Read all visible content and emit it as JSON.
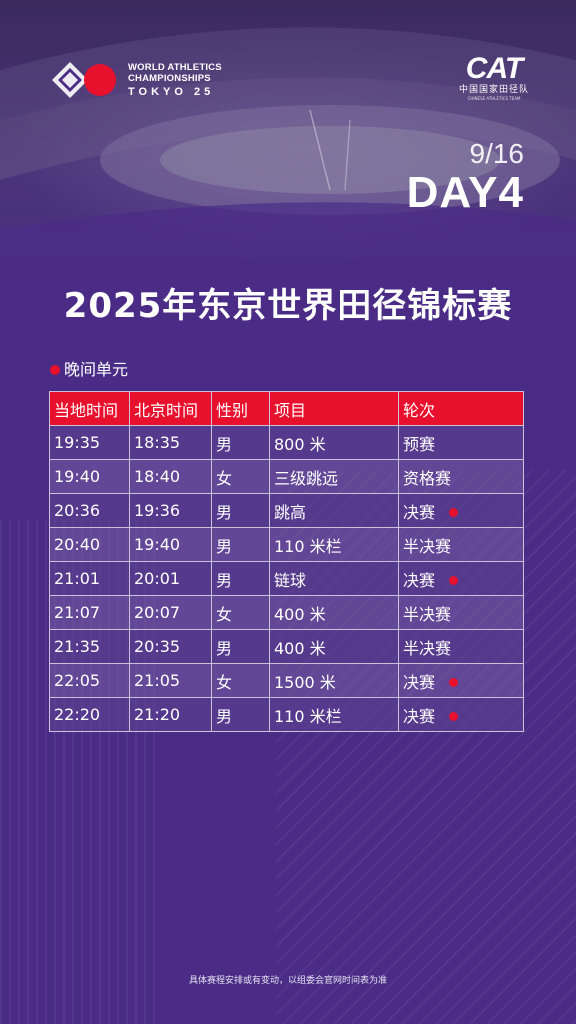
{
  "header": {
    "wac_logo_lines": [
      "WORLD ATHLETICS",
      "CHAMPIONSHIPS"
    ],
    "wac_city": "TOKYO 25",
    "cat_logo": "CAT",
    "cat_name": "中国国家田径队",
    "cat_name_en": "CHINESE ATHLETICS TEAM",
    "date": "9/16",
    "day": "DAY4"
  },
  "title": "2025年东京世界田径锦标赛",
  "session_label": "晚间单元",
  "table": {
    "columns": [
      "当地时间",
      "北京时间",
      "性别",
      "项目",
      "轮次"
    ],
    "rows": [
      {
        "local": "19:35",
        "beijing": "18:35",
        "gender": "男",
        "event": "800 米",
        "round": "预赛",
        "final": false
      },
      {
        "local": "19:40",
        "beijing": "18:40",
        "gender": "女",
        "event": "三级跳远",
        "round": "资格赛",
        "final": false
      },
      {
        "local": "20:36",
        "beijing": "19:36",
        "gender": "男",
        "event": "跳高",
        "round": "决赛",
        "final": true
      },
      {
        "local": "20:40",
        "beijing": "19:40",
        "gender": "男",
        "event": "110 米栏",
        "round": "半决赛",
        "final": false
      },
      {
        "local": "21:01",
        "beijing": "20:01",
        "gender": "男",
        "event": "链球",
        "round": "决赛",
        "final": true
      },
      {
        "local": "21:07",
        "beijing": "20:07",
        "gender": "女",
        "event": "400 米",
        "round": "半决赛",
        "final": false
      },
      {
        "local": "21:35",
        "beijing": "20:35",
        "gender": "男",
        "event": "400 米",
        "round": "半决赛",
        "final": false
      },
      {
        "local": "22:05",
        "beijing": "21:05",
        "gender": "女",
        "event": "1500 米",
        "round": "决赛",
        "final": true
      },
      {
        "local": "22:20",
        "beijing": "21:20",
        "gender": "男",
        "event": "110 米栏",
        "round": "决赛",
        "final": true
      }
    ]
  },
  "footer": "具体赛程安排或有变动，以组委会官网时间表为准",
  "colors": {
    "background": "#4a2c86",
    "header_red": "#e8112d",
    "final_marker": "#e8112d"
  }
}
